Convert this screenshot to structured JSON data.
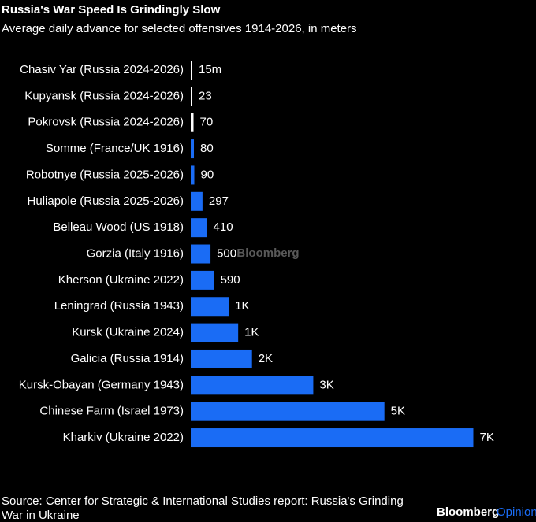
{
  "chart_data": {
    "type": "barh",
    "title": "Russia's War Speed Is Grindingly Slow",
    "subtitle": "Average daily advance for selected offensives 1914-2026, in meters",
    "categories": [
      "Chasiv Yar (Russia 2024-2026)",
      "Kupyansk (Russia 2024-2026)",
      "Pokrovsk (Russia 2024-2026)",
      "Somme (France/UK 1916)",
      "Robotnye (Russia 2025-2026)",
      "Huliapole (Russia 2025-2026)",
      "Belleau Wood (US 1918)",
      "Gorzia (Italy 1916)",
      "Kherson (Ukraine 2022)",
      "Leningrad (Russia 1943)",
      "Kursk (Ukraine 2024)",
      "Galicia (Russia 1914)",
      "Kursk-Obayan (Germany 1943)",
      "Chinese Farm (Israel 1973)",
      "Kharkiv (Ukraine 2022)"
    ],
    "values": [
      15,
      23,
      70,
      80,
      90,
      297,
      410,
      500,
      590,
      960,
      1200,
      1550,
      3100,
      4900,
      7150
    ],
    "value_labels": [
      "15m",
      "23",
      "70",
      "80",
      "90",
      "297",
      "410",
      "500",
      "590",
      "1K",
      "1K",
      "2K",
      "3K",
      "5K",
      "7K"
    ],
    "colors": [
      "#ffffff",
      "#ffffff",
      "#ffffff",
      "#1a6cf5",
      "#1a6cf5",
      "#1a6cf5",
      "#1a6cf5",
      "#1a6cf5",
      "#1a6cf5",
      "#1a6cf5",
      "#1a6cf5",
      "#1a6cf5",
      "#1a6cf5",
      "#1a6cf5",
      "#1a6cf5"
    ],
    "xlim": [
      0,
      7200
    ],
    "watermark": "Bloomberg",
    "source": [
      "Source: Center for Strategic & International Studies report: Russia's Grinding",
      "War in Ukraine"
    ],
    "logo": [
      "Bloomberg",
      "Opinion"
    ]
  }
}
